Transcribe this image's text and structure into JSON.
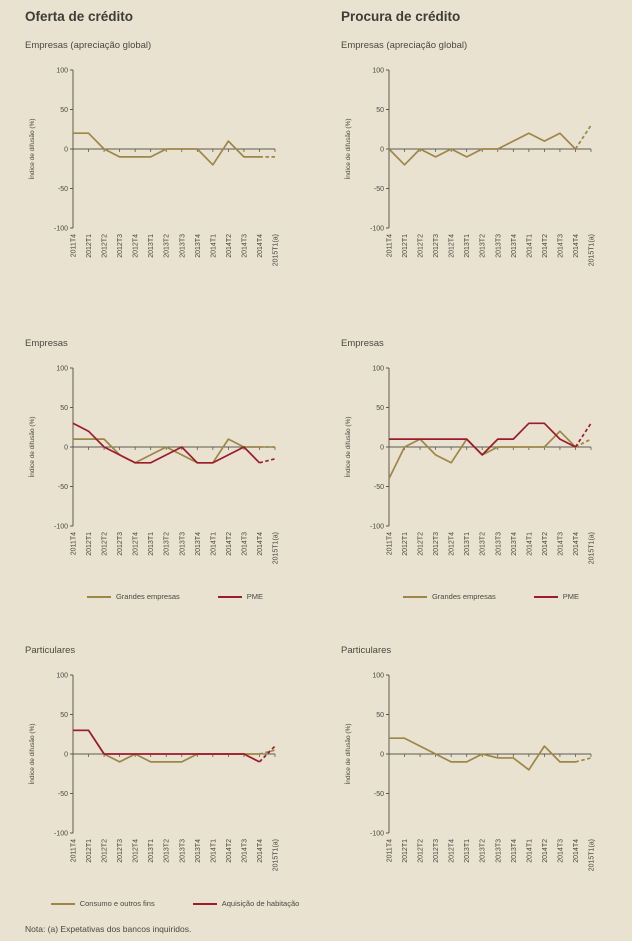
{
  "page": {
    "background": "#e9e2d0",
    "note": "Nota: (a) Expetativas dos bancos inquiridos."
  },
  "columns": [
    {
      "title": "Oferta de crédito"
    },
    {
      "title": "Procura de crédito"
    }
  ],
  "axis": {
    "ylabel": "Índice de difusão (%)",
    "ylim": [
      -100,
      100
    ],
    "yticks": [
      100,
      50,
      0,
      -50,
      -100
    ],
    "categories": [
      "2011T4",
      "2012T1",
      "2012T2",
      "2012T3",
      "2012T4",
      "2013T1",
      "2013T2",
      "2013T3",
      "2013T4",
      "2014T1",
      "2014T2",
      "2014T3",
      "2014T4",
      "2015T1(a)"
    ]
  },
  "colors": {
    "tan": "#9c8747",
    "red": "#9c1b2c",
    "axis": "#5f5a50",
    "text": "#4b4840"
  },
  "chart_data": [
    {
      "type": "line",
      "title": "Empresas (apreciação global)",
      "legend_visible": false,
      "series": [
        {
          "name": "Empresas (apreciação global)",
          "color": "tan",
          "dashed_tail": true,
          "values": [
            20,
            20,
            0,
            -10,
            -10,
            -10,
            0,
            0,
            0,
            -20,
            10,
            -10,
            -10,
            -10
          ]
        }
      ]
    },
    {
      "type": "line",
      "title": "Empresas (apreciação global)",
      "legend_visible": false,
      "series": [
        {
          "name": "Empresas (apreciação global)",
          "color": "tan",
          "dashed_tail": true,
          "values": [
            0,
            -20,
            0,
            -10,
            0,
            -10,
            0,
            0,
            10,
            20,
            10,
            20,
            0,
            30
          ]
        }
      ]
    },
    {
      "type": "line",
      "title": "Empresas",
      "legend_visible": true,
      "series": [
        {
          "name": "Grandes empresas",
          "color": "tan",
          "dashed_tail": true,
          "values": [
            10,
            10,
            10,
            -10,
            -20,
            -10,
            0,
            -10,
            -20,
            -20,
            10,
            0,
            0,
            0
          ]
        },
        {
          "name": "PME",
          "color": "red",
          "dashed_tail": true,
          "values": [
            30,
            20,
            0,
            -10,
            -20,
            -20,
            -10,
            0,
            -20,
            -20,
            -10,
            0,
            -20,
            -15
          ]
        }
      ]
    },
    {
      "type": "line",
      "title": "Empresas",
      "legend_visible": true,
      "series": [
        {
          "name": "Grandes empresas",
          "color": "tan",
          "dashed_tail": true,
          "values": [
            -40,
            0,
            10,
            -10,
            -20,
            10,
            -10,
            0,
            0,
            0,
            0,
            20,
            0,
            10
          ]
        },
        {
          "name": "PME",
          "color": "red",
          "dashed_tail": true,
          "values": [
            10,
            10,
            10,
            10,
            10,
            10,
            -10,
            10,
            10,
            30,
            30,
            10,
            0,
            30
          ]
        }
      ]
    },
    {
      "type": "line",
      "title": "Particulares",
      "legend_visible": true,
      "series": [
        {
          "name": "Consumo e outros fins",
          "color": "tan",
          "dashed_tail": true,
          "values": [
            30,
            30,
            0,
            -10,
            0,
            -10,
            -10,
            -10,
            0,
            0,
            0,
            0,
            0,
            5
          ]
        },
        {
          "name": "Aquisição de habitação",
          "color": "red",
          "dashed_tail": true,
          "values": [
            30,
            30,
            0,
            0,
            0,
            0,
            0,
            0,
            0,
            0,
            0,
            0,
            -10,
            10
          ]
        }
      ]
    },
    {
      "type": "line",
      "title": "Particulares",
      "legend_visible": false,
      "series": [
        {
          "name": "Particulares",
          "color": "tan",
          "dashed_tail": true,
          "values": [
            20,
            20,
            10,
            0,
            -10,
            -10,
            0,
            -5,
            -5,
            -20,
            10,
            -10,
            -10,
            -5
          ]
        }
      ]
    }
  ]
}
